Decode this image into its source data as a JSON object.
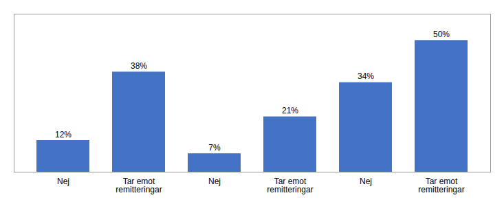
{
  "chart_data": {
    "type": "bar",
    "categories": [
      "Nej",
      "Tar emot\nremitteringar",
      "Nej",
      "Tar emot\nremitteringar",
      "Nej",
      "Tar emot\nremitteringar"
    ],
    "values": [
      12,
      38,
      7,
      21,
      34,
      50
    ],
    "value_labels": [
      "12%",
      "38%",
      "7%",
      "21%",
      "34%",
      "50%"
    ],
    "color": "#4472C4",
    "ylim": [
      0,
      60
    ],
    "data_labels": true,
    "tick_labels": "x"
  }
}
